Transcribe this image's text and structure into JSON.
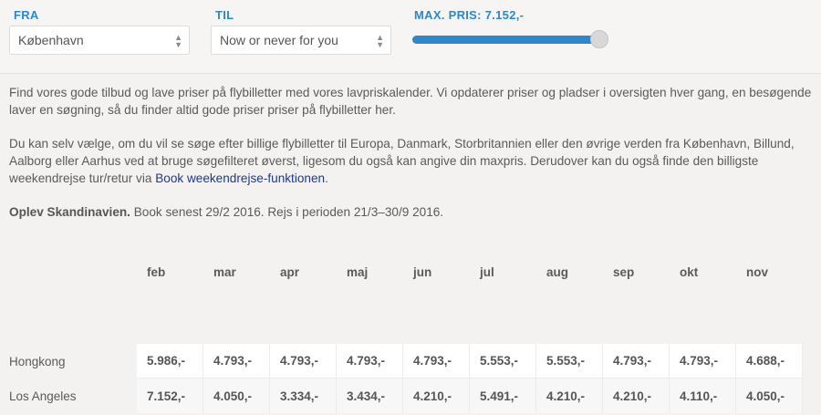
{
  "filters": {
    "fra": {
      "label": "FRA",
      "value": "København"
    },
    "til": {
      "label": "TIL",
      "value": "Now or never for you"
    },
    "max_pris": {
      "label": "MAX. PRIS: 7.152,-",
      "level_fraction": 0.93
    }
  },
  "intro": {
    "p1": "Find vores gode tilbud og lave priser på flybilletter med vores lavpriskalender. Vi opdaterer priser og pladser i oversigten hver gang, en besøgende laver en søgning, så du finder altid gode priser priser på flybilletter her.",
    "p2_before": "Du kan selv vælge, om du vil se søge efter billige flybilletter til Europa, Danmark, Storbritannien eller den øvrige verden fra København, Billund, Aalborg eller Aarhus ved at bruge søgefilteret øverst, ligesom du også kan angive din maxpris. Derudover kan du også finde den billigste weekendrejse tur/retur via ",
    "p2_link": "Book weekendrejse-funktionen",
    "p2_after": ".",
    "p3_bold": "Oplev Skandinavien.",
    "p3_rest": " Book senest 29/2 2016. Rejs i perioden 21/3–30/9 2016."
  },
  "table": {
    "months": [
      "feb",
      "mar",
      "apr",
      "maj",
      "jun",
      "jul",
      "aug",
      "sep",
      "okt",
      "nov"
    ],
    "rows": [
      {
        "dest": "Hongkong",
        "prices": [
          "5.986,-",
          "4.793,-",
          "4.793,-",
          "4.793,-",
          "4.793,-",
          "5.553,-",
          "5.553,-",
          "4.793,-",
          "4.793,-",
          "4.688,-"
        ]
      },
      {
        "dest": "Los Angeles",
        "prices": [
          "7.152,-",
          "4.050,-",
          "3.334,-",
          "3.434,-",
          "4.210,-",
          "5.491,-",
          "4.210,-",
          "4.210,-",
          "4.110,-",
          "4.050,-"
        ]
      }
    ]
  }
}
